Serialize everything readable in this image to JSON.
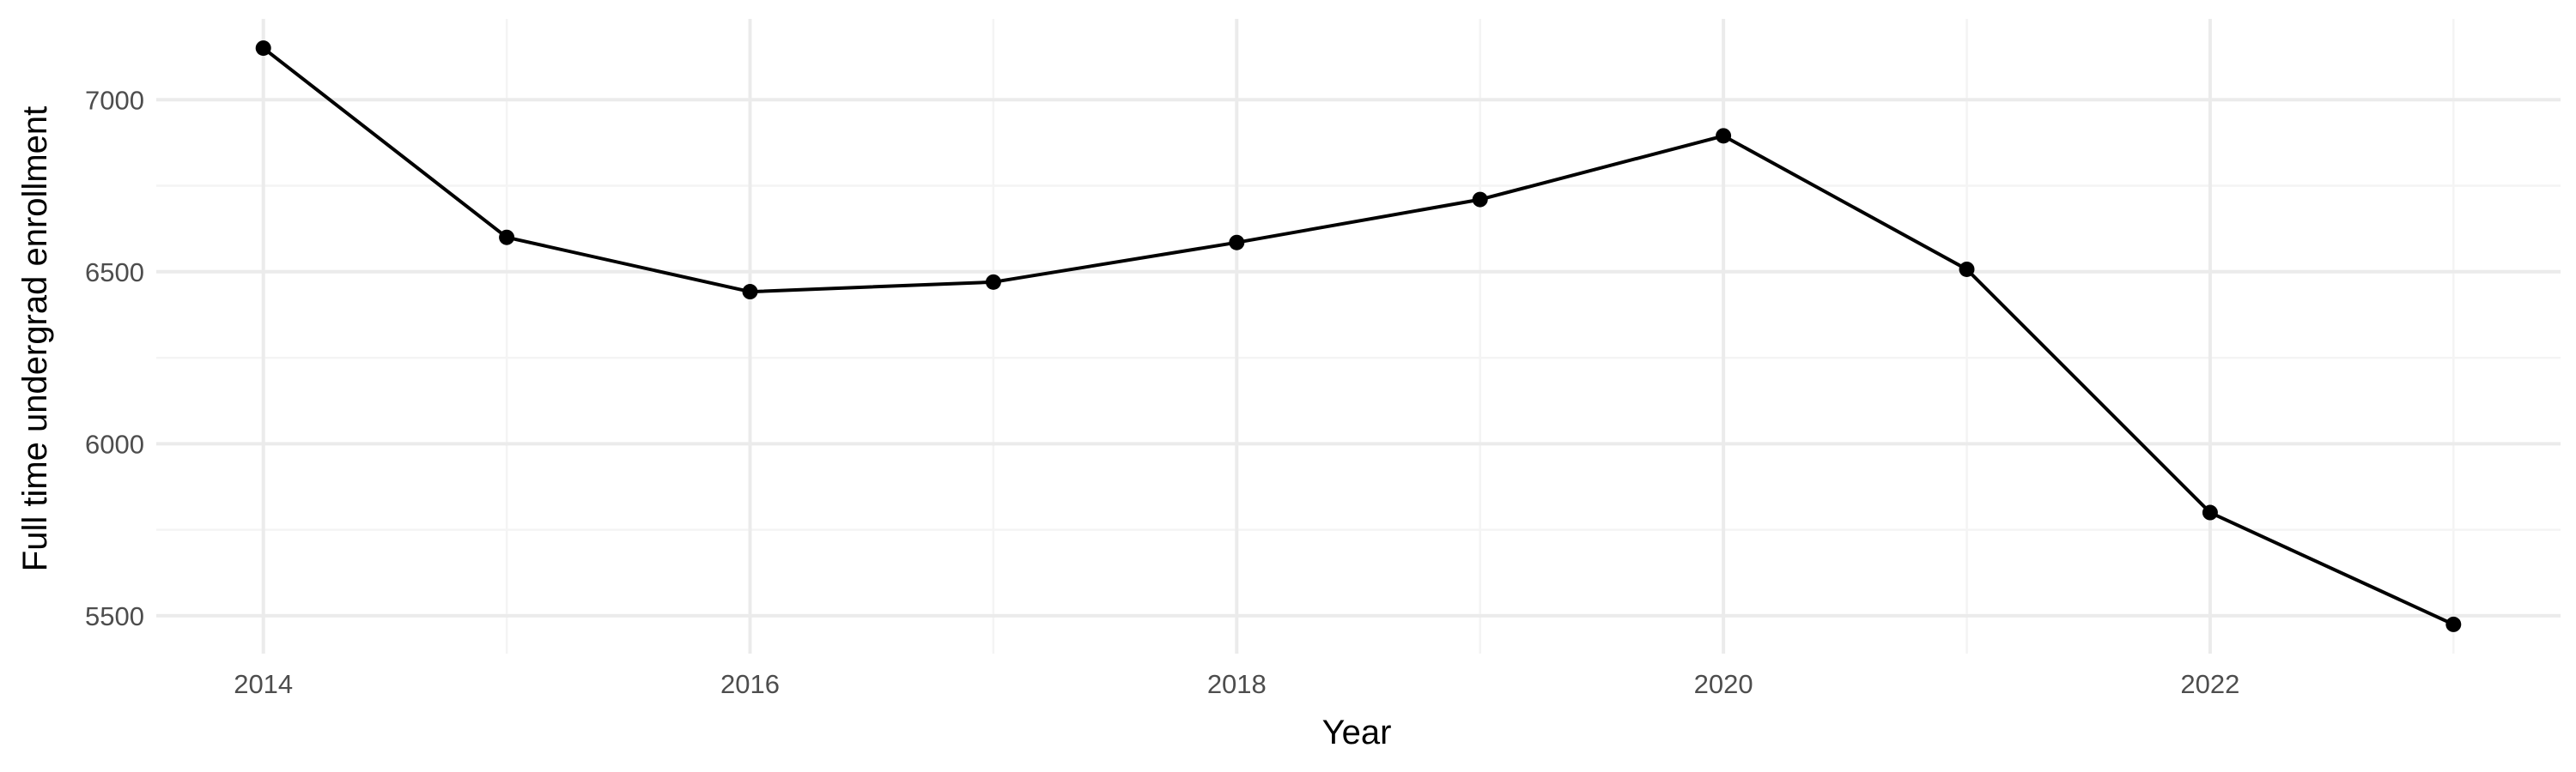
{
  "chart_data": {
    "type": "line",
    "title": "",
    "xlabel": "Year",
    "ylabel": "Full time undergrad enrollment",
    "x": [
      2014,
      2015,
      2016,
      2017,
      2018,
      2019,
      2020,
      2021,
      2022,
      2023
    ],
    "series": [
      {
        "values": [
          7150,
          6600,
          6442,
          6470,
          6585,
          6710,
          6895,
          6507,
          5800,
          5475
        ]
      }
    ],
    "x_ticks": [
      2014,
      2016,
      2018,
      2020,
      2022
    ],
    "y_ticks": [
      5500,
      6000,
      6500,
      7000
    ],
    "xlim": [
      2013.56,
      2023.44
    ],
    "ylim": [
      5390,
      7235
    ],
    "grid": true,
    "line_color": "#000000",
    "point_color": "#000000",
    "grid_color": "#ebebeb",
    "legend": "none"
  }
}
